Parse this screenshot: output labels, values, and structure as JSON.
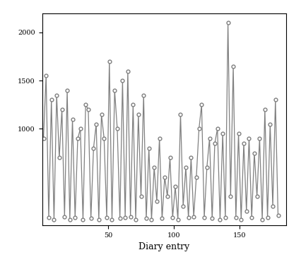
{
  "chart_data": {
    "type": "line",
    "xlabel": "Diary entry",
    "x": [
      1,
      3,
      5,
      7,
      9,
      11,
      13,
      15,
      17,
      19,
      21,
      23,
      25,
      27,
      29,
      31,
      33,
      35,
      37,
      39,
      41,
      43,
      45,
      47,
      49,
      51,
      53,
      55,
      57,
      59,
      61,
      63,
      65,
      67,
      69,
      71,
      73,
      75,
      77,
      79,
      81,
      83,
      85,
      87,
      89,
      91,
      93,
      95,
      97,
      99,
      101,
      103,
      105,
      107,
      109,
      111,
      113,
      115,
      117,
      119,
      121,
      123,
      125,
      127,
      129,
      131,
      133,
      135,
      137,
      139,
      141,
      143,
      145,
      147,
      149,
      151,
      153,
      155,
      157,
      159,
      161,
      163,
      165,
      167,
      169,
      171,
      173,
      175,
      177,
      179
    ],
    "values": [
      900,
      1550,
      80,
      1300,
      60,
      1350,
      700,
      1200,
      90,
      1400,
      60,
      1100,
      80,
      900,
      1000,
      60,
      1250,
      1200,
      70,
      800,
      1050,
      60,
      1150,
      900,
      80,
      1700,
      60,
      1400,
      1000,
      70,
      1500,
      80,
      1600,
      90,
      1250,
      60,
      1150,
      300,
      1350,
      70,
      800,
      60,
      600,
      250,
      900,
      70,
      500,
      300,
      700,
      80,
      400,
      60,
      1150,
      200,
      600,
      80,
      700,
      90,
      500,
      1000,
      1250,
      80,
      600,
      900,
      70,
      850,
      1000,
      60,
      950,
      80,
      2100,
      300,
      1650,
      80,
      950,
      60,
      850,
      150,
      900,
      80,
      750,
      300,
      900,
      60,
      1200,
      80,
      1050,
      200,
      1300,
      100
    ],
    "color": "#808080",
    "marker": "o",
    "line_style": "solid",
    "xlim": [
      0,
      185
    ],
    "xticks": [
      50,
      100,
      150
    ],
    "ylim": [
      0,
      2200
    ],
    "yticks": [
      1000,
      1500,
      2000
    ],
    "grid": false
  }
}
